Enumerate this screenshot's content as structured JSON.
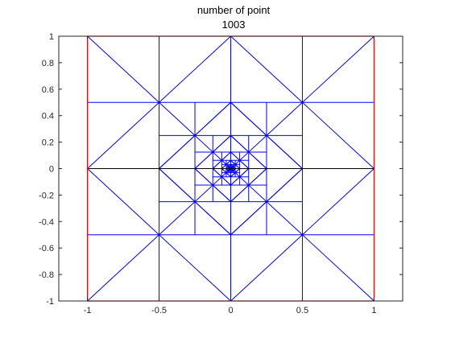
{
  "figure": {
    "title_line1": "number of point",
    "title_line2": "1003"
  },
  "chart_data": {
    "type": "mesh",
    "title": [
      "number of point",
      "1003"
    ],
    "xlabel": "",
    "ylabel": "",
    "xlim": [
      -1.2,
      1.2
    ],
    "ylim": [
      -1,
      1
    ],
    "grid": false,
    "x_ticks": [
      -1,
      -0.5,
      0,
      0.5,
      1
    ],
    "x_tick_labels": [
      "-1",
      "-0.5",
      "0",
      "0.5",
      "1"
    ],
    "y_ticks": [
      -1,
      -0.8,
      -0.6,
      -0.4,
      -0.2,
      0,
      0.2,
      0.4,
      0.6,
      0.8,
      1
    ],
    "y_tick_labels": [
      "-1",
      "-0.8",
      "-0.6",
      "-0.4",
      "-0.2",
      "0",
      "0.2",
      "0.4",
      "0.6",
      "0.8",
      "1"
    ],
    "boundary_color": "#ff0000",
    "mesh_color": "#0000ff",
    "interface_color": "#000000",
    "domain_boundary": [
      [
        -1,
        -1
      ],
      [
        1,
        -1
      ],
      [
        1,
        1
      ],
      [
        -1,
        1
      ]
    ],
    "interface_segment": [
      [
        -1,
        0
      ],
      [
        1,
        0
      ]
    ],
    "mesh_refinement": {
      "center": [
        0,
        0
      ],
      "levels": 8,
      "coarsest_half_width": 1
    }
  }
}
